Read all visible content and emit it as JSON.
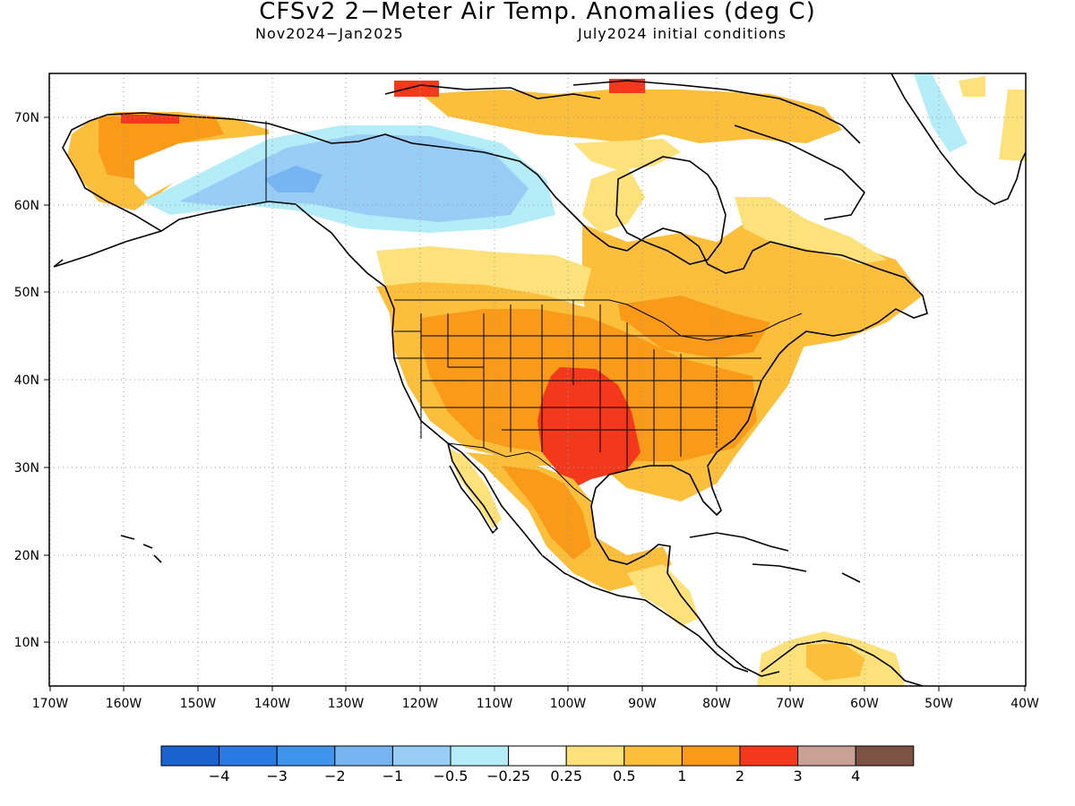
{
  "title": "CFSv2 2−Meter Air Temp. Anomalies (deg C)",
  "subtitle_left": "Nov2024−Jan2025",
  "subtitle_right": "July2024 initial conditions",
  "map": {
    "lon_labels": [
      "170W",
      "160W",
      "150W",
      "140W",
      "130W",
      "120W",
      "110W",
      "100W",
      "90W",
      "80W",
      "70W",
      "60W",
      "50W",
      "40W"
    ],
    "lat_labels": [
      "70N",
      "60N",
      "50N",
      "40N",
      "30N",
      "20N",
      "10N"
    ]
  },
  "colorbar": {
    "colors": [
      "#1a62cd",
      "#2a7ae6",
      "#3f95ee",
      "#76b4f2",
      "#98cdf6",
      "#b4ecf8",
      "#ffffff",
      "#fde17a",
      "#fcbf3c",
      "#f99a19",
      "#f4381c",
      "#c9a094",
      "#7b5243"
    ],
    "labels": [
      "−4",
      "−3",
      "−2",
      "−1",
      "−0.5",
      "−0.25",
      "0.25",
      "0.5",
      "1",
      "2",
      "3",
      "4"
    ]
  },
  "anomaly_palette": {
    "light_blue": "#b4ecf8",
    "blue": "#98cdf6",
    "mid_blue": "#76b4f2",
    "light_yellow": "#fde17a",
    "light_orange": "#fcbf3c",
    "orange": "#f99a19",
    "red": "#f4381c"
  }
}
